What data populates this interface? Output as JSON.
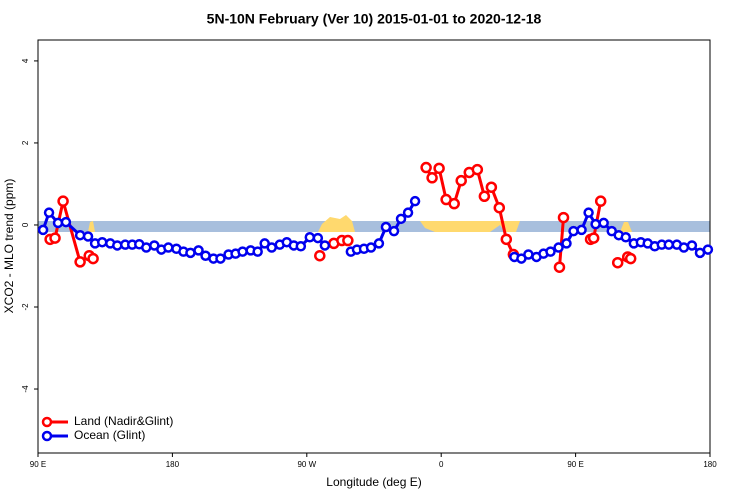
{
  "chart_data": {
    "type": "line",
    "title": "5N-10N February (Ver 10)   2015-01-01 to 2020-12-18",
    "xlabel": "Longitude (deg E)",
    "ylabel": "XCO2 - MLO trend (ppm)",
    "xlim": [
      90,
      540
    ],
    "xticks": [
      {
        "value": 90,
        "label": "90 E"
      },
      180,
      {
        "value": 270,
        "label": "90 W"
      },
      {
        "value": 360,
        "label": "0"
      },
      {
        "value": 450,
        "label": "90 E"
      },
      {
        "value": 540,
        "label": "180"
      }
    ],
    "ylim": [
      -5.56,
      4.51
    ],
    "yticks": [
      -4,
      -2,
      0,
      2,
      4
    ],
    "legend": "bottom-left",
    "series": [
      {
        "name": "Land (Nadir&Glint)",
        "color": "#ff0000",
        "x": [
          98.1,
          101.4,
          106.8,
          118.2,
          124.3,
          126.9,
          null,
          278.7,
          null,
          288.1,
          293.5,
          297.5,
          null,
          349.9,
          353.9,
          358.6,
          363.3,
          368.7,
          373.4,
          378.8,
          384.2,
          388.9,
          393.6,
          398.9,
          403.6,
          408.3,
          null,
          439.2,
          441.9,
          null,
          460,
          462.1,
          466.8,
          null,
          478.2,
          484.9,
          486.9
        ],
        "values": [
          -0.35,
          -0.32,
          0.58,
          -0.9,
          -0.75,
          -0.82,
          null,
          -0.75,
          null,
          -0.45,
          -0.38,
          -0.38,
          null,
          1.4,
          1.15,
          1.38,
          0.62,
          0.52,
          1.08,
          1.28,
          1.35,
          0.7,
          0.92,
          0.42,
          -0.35,
          -0.72,
          null,
          -1.03,
          0.18,
          null,
          -0.35,
          -0.32,
          0.58,
          null,
          -0.92,
          -0.78,
          -0.82
        ]
      },
      {
        "name": "Ocean (Glint)",
        "color": "#0000ee",
        "x": [
          93.4,
          97.4,
          103.4,
          108.7,
          118.2,
          123.5,
          128.2,
          133,
          138.4,
          143.1,
          148.4,
          153.1,
          157.8,
          162.5,
          167.9,
          172.6,
          177.3,
          182.7,
          187.4,
          192.1,
          197.5,
          202.2,
          207.5,
          212.2,
          217.6,
          222.3,
          227,
          232.4,
          237.1,
          241.8,
          246.5,
          251.9,
          256.6,
          261.3,
          266,
          272,
          277.4,
          282.1,
          null,
          299.5,
          303.6,
          308.3,
          313,
          318.3,
          323,
          328.4,
          333.1,
          337.8,
          342.5,
          null,
          409,
          413.7,
          418.4,
          423.8,
          428.5,
          433.2,
          438.6,
          443.9,
          448.6,
          454,
          458.7,
          463.4,
          468.8,
          474.2,
          478.9,
          483.6,
          489,
          493.7,
          498.3,
          503,
          507.7,
          512.4,
          517.8,
          522.5,
          527.9,
          533.3,
          538.6
        ],
        "values": [
          -0.12,
          0.3,
          0.05,
          0.07,
          -0.25,
          -0.28,
          -0.45,
          -0.42,
          -0.45,
          -0.5,
          -0.48,
          -0.48,
          -0.47,
          -0.55,
          -0.5,
          -0.6,
          -0.55,
          -0.58,
          -0.65,
          -0.68,
          -0.62,
          -0.75,
          -0.82,
          -0.82,
          -0.72,
          -0.7,
          -0.65,
          -0.62,
          -0.65,
          -0.45,
          -0.55,
          -0.48,
          -0.42,
          -0.5,
          -0.52,
          -0.3,
          -0.32,
          -0.5,
          null,
          -0.65,
          -0.6,
          -0.58,
          -0.55,
          -0.45,
          -0.05,
          -0.15,
          0.15,
          0.3,
          0.58,
          null,
          -0.78,
          -0.82,
          -0.72,
          -0.78,
          -0.7,
          -0.65,
          -0.55,
          -0.45,
          -0.15,
          -0.12,
          0.3,
          0.02,
          0.05,
          -0.15,
          -0.25,
          -0.3,
          -0.45,
          -0.42,
          -0.45,
          -0.52,
          -0.48,
          -0.48,
          -0.48,
          -0.55,
          -0.5,
          -0.68,
          -0.6
        ]
      }
    ]
  }
}
